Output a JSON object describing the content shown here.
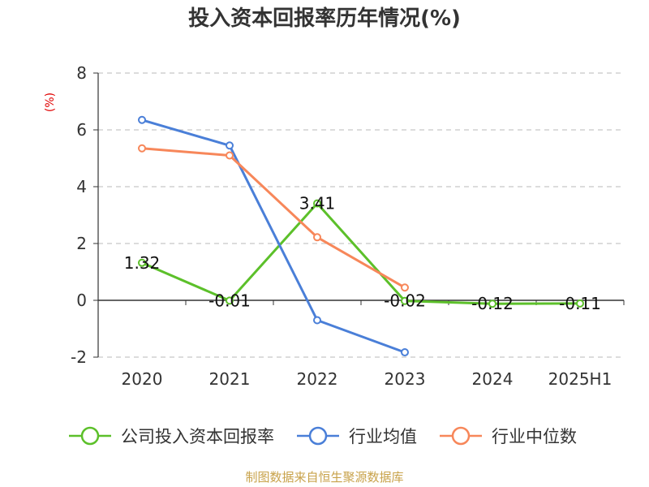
{
  "colors": {
    "company": "#5cc02a",
    "industry_avg": "#4a7fd8",
    "industry_median": "#f7875a",
    "grid": "#c8c8c8",
    "unit": "#e00000",
    "source": "#c8a24a"
  },
  "source_text": "制图数据来自恒生聚源数据库",
  "chart_data": {
    "type": "line",
    "title": "投入资本回报率历年情况(%)",
    "ylabel": "(%)",
    "xlabel": "",
    "ylim": [
      -2,
      8
    ],
    "yticks": [
      -2,
      0,
      2,
      4,
      6,
      8
    ],
    "categories": [
      "2020",
      "2021",
      "2022",
      "2023",
      "2024",
      "2025H1"
    ],
    "grid": true,
    "legend_position": "bottom",
    "series": [
      {
        "name": "公司投入资本回报率",
        "color": "#5cc02a",
        "values": [
          1.32,
          -0.01,
          3.41,
          -0.02,
          -0.12,
          -0.11
        ],
        "labels": [
          "1.32",
          "-0.01",
          "3.41",
          "-0.02",
          "-0.12",
          "-0.11"
        ]
      },
      {
        "name": "行业均值",
        "color": "#4a7fd8",
        "values": [
          6.35,
          5.45,
          -0.7,
          -1.83,
          null,
          null
        ]
      },
      {
        "name": "行业中位数",
        "color": "#f7875a",
        "values": [
          5.35,
          5.1,
          2.22,
          0.45,
          null,
          null
        ]
      }
    ]
  }
}
